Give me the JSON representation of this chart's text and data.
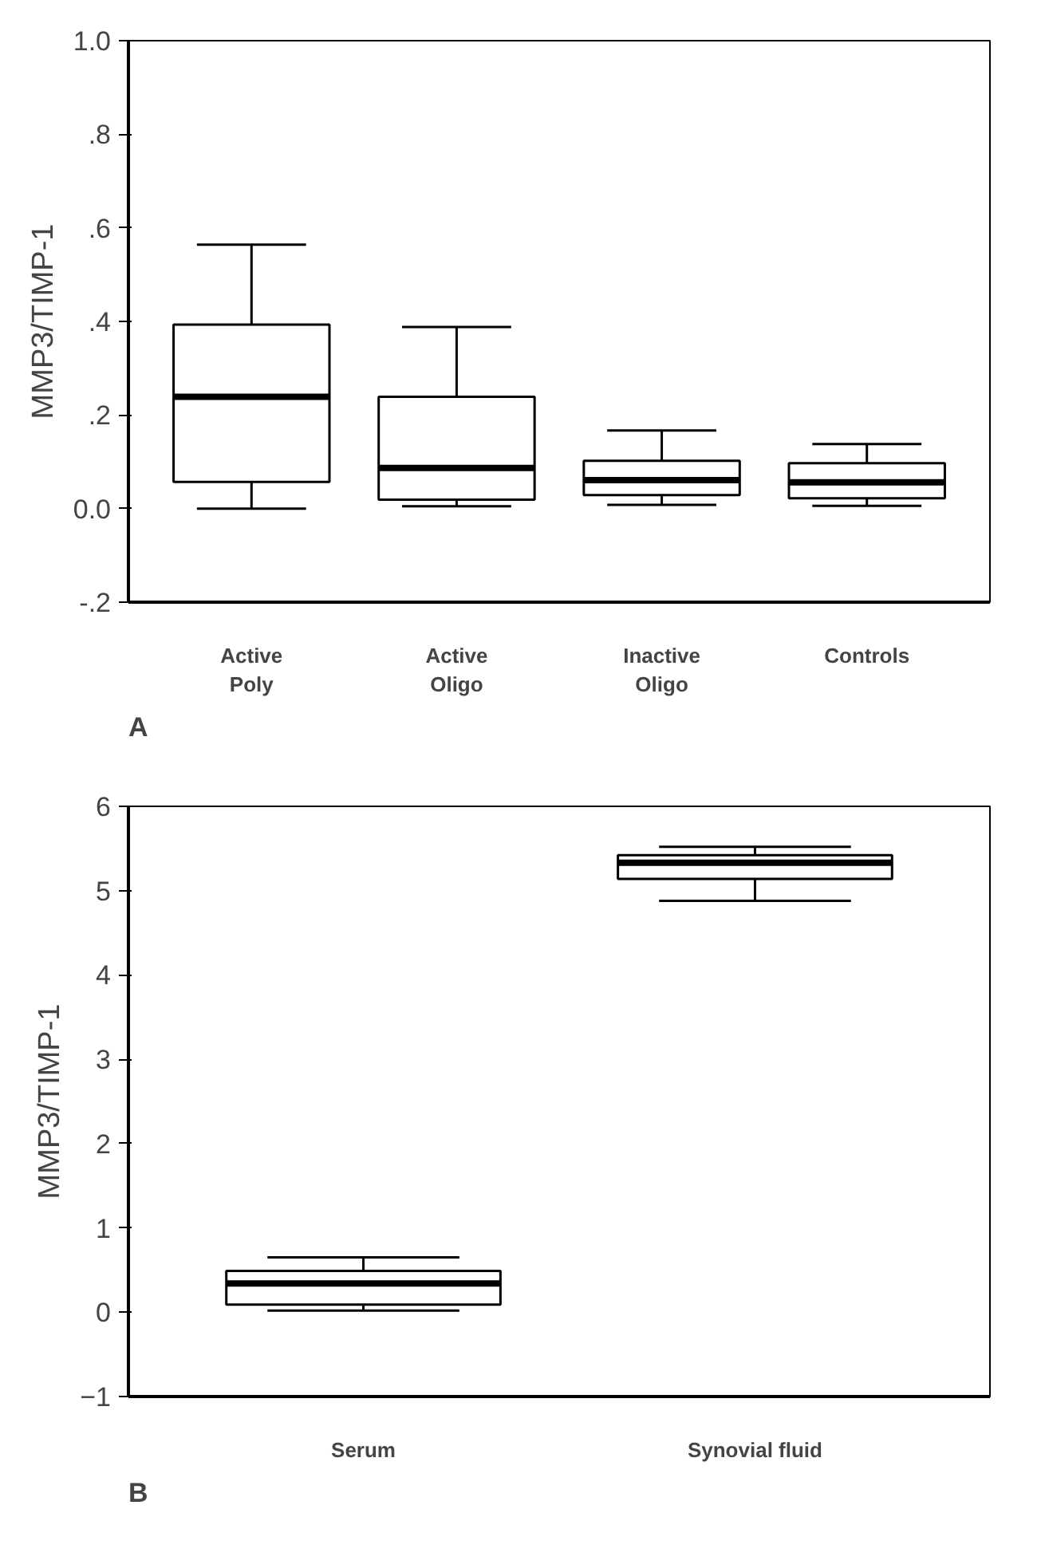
{
  "chart_data": [
    {
      "type": "box",
      "ylabel": "MMP3/TIMP-1",
      "categories": [
        "Active\nPoly",
        "Active\nOligo",
        "Inactive\nOligo",
        "Controls"
      ],
      "boxes": [
        {
          "low": 0.0,
          "q1": 0.057,
          "median": 0.239,
          "q3": 0.393,
          "high": 0.564
        },
        {
          "low": 0.005,
          "q1": 0.019,
          "median": 0.087,
          "q3": 0.239,
          "high": 0.388
        },
        {
          "low": 0.008,
          "q1": 0.029,
          "median": 0.061,
          "q3": 0.102,
          "high": 0.167
        },
        {
          "low": 0.006,
          "q1": 0.022,
          "median": 0.056,
          "q3": 0.097,
          "high": 0.138
        }
      ],
      "color": "#000000",
      "ylim": [
        -0.2,
        1.0
      ],
      "yticks": [
        {
          "value": -0.2,
          "label": "-.2"
        },
        {
          "value": 0.0,
          "label": "0.0"
        },
        {
          "value": 0.2,
          "label": ".2"
        },
        {
          "value": 0.4,
          "label": ".4"
        },
        {
          "value": 0.6,
          "label": ".6"
        },
        {
          "value": 0.8,
          "label": ".8"
        },
        {
          "value": 1.0,
          "label": "1.0"
        }
      ],
      "grid": false,
      "annotations": [
        "A"
      ]
    },
    {
      "type": "box",
      "ylabel": "MMP3/TIMP-1",
      "categories": [
        "Serum",
        "Synovial fluid"
      ],
      "boxes": [
        {
          "low": 0.02,
          "q1": 0.09,
          "median": 0.34,
          "q3": 0.49,
          "high": 0.65
        },
        {
          "low": 4.88,
          "q1": 5.14,
          "median": 5.33,
          "q3": 5.42,
          "high": 5.52
        }
      ],
      "color": "#000000",
      "ylim": [
        -1,
        6
      ],
      "yticks": [
        -1,
        0,
        1,
        2,
        3,
        4,
        5,
        6
      ],
      "grid": false,
      "annotations": [
        "B"
      ]
    }
  ]
}
